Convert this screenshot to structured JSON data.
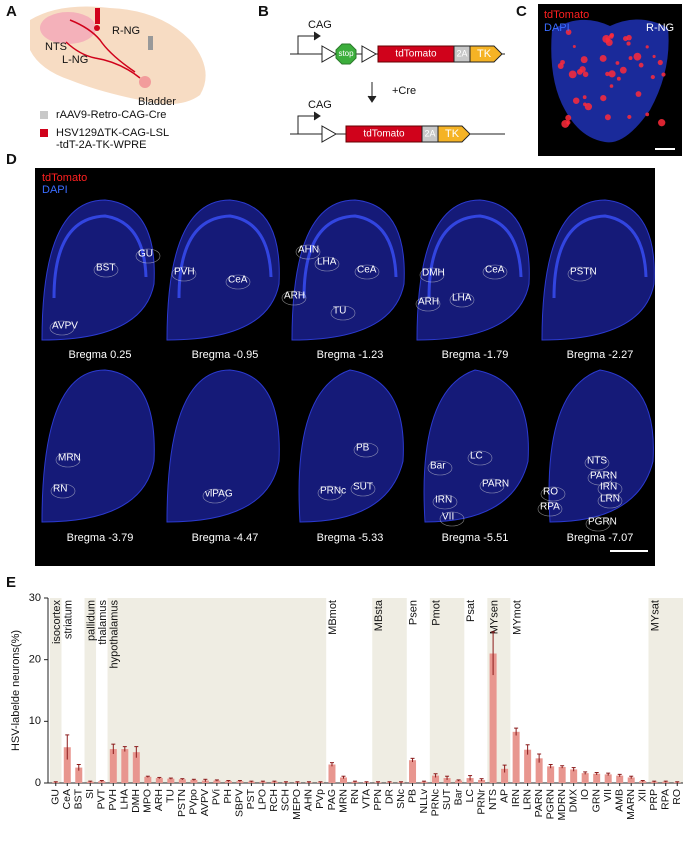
{
  "panel_labels": [
    "A",
    "B",
    "C",
    "D",
    "E"
  ],
  "panel_a": {
    "r_ng": "R-NG",
    "nts": "NTS",
    "l_ng": "L-NG",
    "bladder": "Bladder",
    "legend": [
      {
        "lines": [
          "rAAV9-Retro-CAG-Cre"
        ],
        "color": "#c8c8c8"
      },
      {
        "lines": [
          "HSV129ΔTK-CAG-LSL",
          "-tdT-2A-TK-WPRE"
        ],
        "color": "#d0021b"
      }
    ]
  },
  "panel_b": {
    "promoter": "CAG",
    "stop": "stop",
    "reporter": "tdTomato",
    "linker": "2A",
    "kinase": "TK",
    "recombinase": "+Cre"
  },
  "panel_c": {
    "channels": [
      {
        "name": "tdTomato",
        "color": "#ff2020"
      },
      {
        "name": "DAPI",
        "color": "#3a6cff"
      }
    ],
    "label": "R-NG"
  },
  "panel_d": {
    "channels": [
      {
        "name": "tdTomato",
        "color": "#ff2020"
      },
      {
        "name": "DAPI",
        "color": "#3a6cff"
      }
    ],
    "slices": [
      {
        "caption": "Bregma 0.25",
        "regions": [
          "BST",
          "GU",
          "AVPV"
        ]
      },
      {
        "caption": "Bregma -0.95",
        "regions": [
          "PVH",
          "CeA"
        ]
      },
      {
        "caption": "Bregma -1.23",
        "regions": [
          "AHN",
          "LHA",
          "ARH",
          "CeA",
          "TU"
        ]
      },
      {
        "caption": "Bregma -1.79",
        "regions": [
          "DMH",
          "CeA",
          "ARH",
          "LHA"
        ]
      },
      {
        "caption": "Bregma -2.27",
        "regions": [
          "PSTN"
        ]
      },
      {
        "caption": "Bregma -3.79",
        "regions": [
          "MRN",
          "RN"
        ]
      },
      {
        "caption": "Bregma -4.47",
        "regions": [
          "vlPAG"
        ]
      },
      {
        "caption": "Bregma -5.33",
        "regions": [
          "PB",
          "SUT",
          "PRNc"
        ]
      },
      {
        "caption": "Bregma -5.51",
        "regions": [
          "LC",
          "Bar",
          "PARN",
          "IRN",
          "VII"
        ]
      },
      {
        "caption": "Bregma -7.07",
        "regions": [
          "NTS",
          "PARN",
          "IRN",
          "LRN",
          "RO",
          "RPA",
          "PGRN"
        ]
      }
    ]
  },
  "chart_data": {
    "type": "bar",
    "y_label": "HSV-labelde neurons(%)",
    "ylim": [
      0,
      30
    ],
    "yticks": [
      0,
      10,
      20,
      30
    ],
    "color": "#e8968f",
    "error_color": "#8b1a1a",
    "categories": [
      "GU",
      "CeA",
      "BST",
      "SI",
      "PVT",
      "PVH",
      "LHA",
      "DMH",
      "MPO",
      "ARH",
      "TU",
      "PSTN",
      "PVpo",
      "AVPV",
      "PVi",
      "PH",
      "SBPV",
      "PST",
      "LPO",
      "RCH",
      "SCH",
      "MEPO",
      "AHN",
      "PVp",
      "PAG",
      "MRN",
      "RN",
      "VTA",
      "PPN",
      "DR",
      "SNc",
      "PB",
      "NLLv",
      "PRNc",
      "SUT",
      "Bar",
      "LC",
      "PRNr",
      "NTS",
      "AP",
      "IRN",
      "LRN",
      "PARN",
      "PGRN",
      "MDRN",
      "DMX",
      "IO",
      "GRN",
      "VII",
      "AMB",
      "MARN",
      "XII",
      "PRP",
      "RPA",
      "RO"
    ],
    "values": [
      0.1,
      5.8,
      2.5,
      0.2,
      0.3,
      5.5,
      5.5,
      5.0,
      1.0,
      0.8,
      0.7,
      0.6,
      0.5,
      0.4,
      0.4,
      0.3,
      0.3,
      0.2,
      0.2,
      0.2,
      0.1,
      0.1,
      0.1,
      0.1,
      3.0,
      0.9,
      0.2,
      0.1,
      0.1,
      0.1,
      0.1,
      3.7,
      0.2,
      1.2,
      0.8,
      0.4,
      0.8,
      0.5,
      21.0,
      2.3,
      8.3,
      5.4,
      4.0,
      2.7,
      2.6,
      2.2,
      1.6,
      1.5,
      1.4,
      1.2,
      0.9,
      0.3,
      0.2,
      0.2,
      0.1
    ],
    "errors": [
      0.1,
      2.0,
      0.5,
      0.1,
      0.1,
      0.8,
      0.4,
      0.9,
      0.1,
      0.1,
      0.1,
      0.1,
      0.1,
      0.2,
      0.1,
      0.1,
      0.1,
      0.1,
      0.1,
      0.1,
      0.1,
      0.1,
      0.1,
      0.1,
      0.3,
      0.2,
      0.1,
      0.1,
      0.1,
      0.1,
      0.1,
      0.3,
      0.1,
      0.3,
      0.3,
      0.1,
      0.4,
      0.2,
      3.5,
      0.6,
      0.6,
      0.8,
      0.7,
      0.3,
      0.2,
      0.3,
      0.2,
      0.2,
      0.2,
      0.2,
      0.2,
      0.1,
      0.1,
      0.1,
      0.1
    ],
    "groups": [
      {
        "name": "isocortex",
        "from": "GU",
        "to": "GU",
        "shaded": true
      },
      {
        "name": "striatum",
        "from": "CeA",
        "to": "BST",
        "shaded": false
      },
      {
        "name": "pallidum",
        "from": "SI",
        "to": "SI",
        "shaded": true
      },
      {
        "name": "thalamus",
        "from": "PVT",
        "to": "PVT",
        "shaded": false
      },
      {
        "name": "hypothalamus",
        "from": "PVH",
        "to": "PVp",
        "shaded": true
      },
      {
        "name": "MBmot",
        "from": "PAG",
        "to": "VTA",
        "shaded": false
      },
      {
        "name": "MBsta",
        "from": "PPN",
        "to": "SNc",
        "shaded": true
      },
      {
        "name": "Psen",
        "from": "PB",
        "to": "NLLv",
        "shaded": false
      },
      {
        "name": "Pmot",
        "from": "PRNc",
        "to": "Bar",
        "shaded": true
      },
      {
        "name": "Psat",
        "from": "LC",
        "to": "PRNr",
        "shaded": false
      },
      {
        "name": "MYsen",
        "from": "NTS",
        "to": "AP",
        "shaded": true
      },
      {
        "name": "MYmot",
        "from": "IRN",
        "to": "XII",
        "shaded": false
      },
      {
        "name": "MYsat",
        "from": "PRP",
        "to": "RO",
        "shaded": true
      }
    ],
    "group_shade": "#efede3"
  }
}
